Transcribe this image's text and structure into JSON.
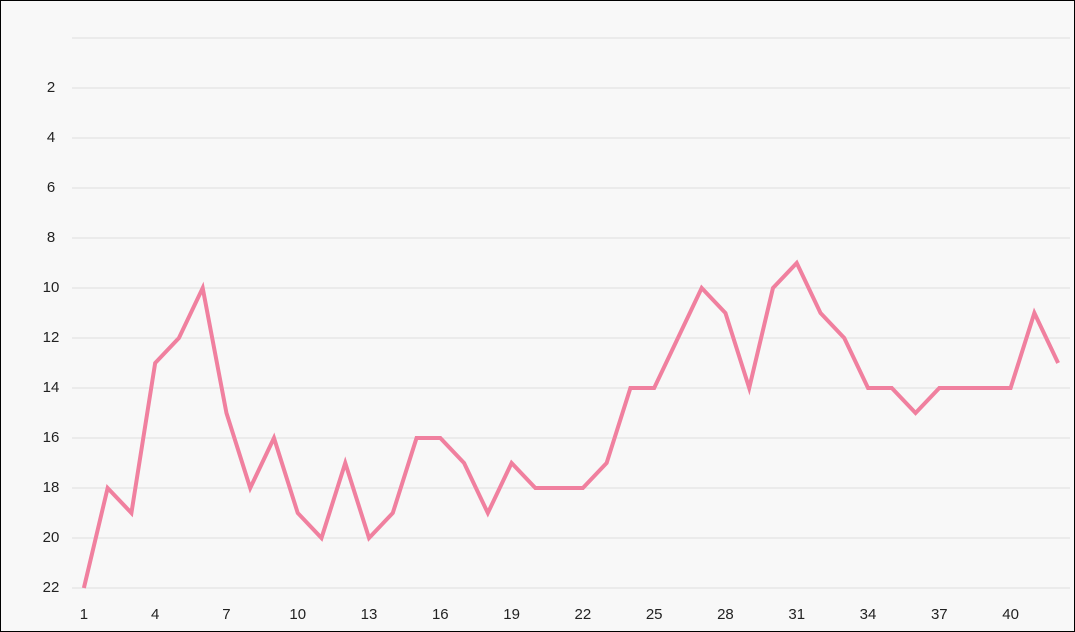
{
  "chart_data": {
    "type": "line",
    "inverted_y": true,
    "grid": true,
    "x": [
      1,
      2,
      3,
      4,
      5,
      6,
      7,
      8,
      9,
      10,
      11,
      12,
      13,
      14,
      15,
      16,
      17,
      18,
      19,
      20,
      21,
      22,
      23,
      24,
      25,
      26,
      27,
      28,
      29,
      30,
      31,
      32,
      33,
      34,
      35,
      36,
      37,
      38,
      39,
      40,
      41,
      42
    ],
    "series": [
      {
        "color": "#f0809f",
        "values": [
          22,
          18,
          19,
          13,
          12,
          10,
          15,
          18,
          16,
          19,
          20,
          17,
          20,
          19,
          16,
          16,
          17,
          19,
          17,
          18,
          18,
          18,
          17,
          14,
          14,
          12,
          10,
          11,
          14,
          10,
          9,
          11,
          12,
          14,
          14,
          15,
          14,
          14,
          14,
          14,
          11,
          13
        ]
      }
    ],
    "xlim": [
      0.5,
      42.5
    ],
    "xticks": [
      1,
      4,
      7,
      10,
      13,
      16,
      19,
      22,
      25,
      28,
      31,
      34,
      37,
      40
    ],
    "ylim": [
      0,
      22
    ],
    "yticks": [
      2,
      4,
      6,
      8,
      10,
      12,
      14,
      16,
      18,
      20,
      22
    ]
  }
}
